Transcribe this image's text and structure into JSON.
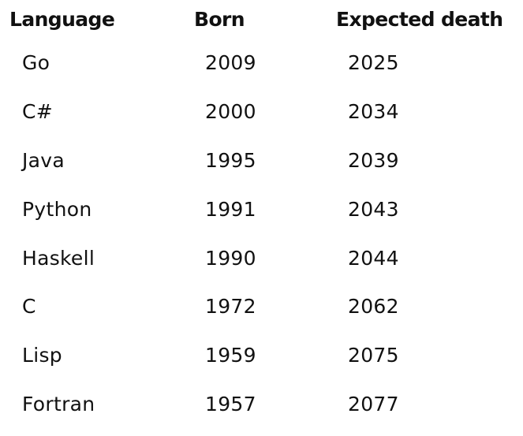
{
  "table": {
    "headers": {
      "language": "Language",
      "born": "Born",
      "expected_death": "Expected death"
    },
    "rows": [
      {
        "language": "Go",
        "born": "2009",
        "expected_death": "2025"
      },
      {
        "language": "C#",
        "born": "2000",
        "expected_death": "2034"
      },
      {
        "language": "Java",
        "born": "1995",
        "expected_death": "2039"
      },
      {
        "language": "Python",
        "born": "1991",
        "expected_death": "2043"
      },
      {
        "language": "Haskell",
        "born": "1990",
        "expected_death": "2044"
      },
      {
        "language": "C",
        "born": "1972",
        "expected_death": "2062"
      },
      {
        "language": "Lisp",
        "born": "1959",
        "expected_death": "2075"
      },
      {
        "language": "Fortran",
        "born": "1957",
        "expected_death": "2077"
      }
    ]
  }
}
